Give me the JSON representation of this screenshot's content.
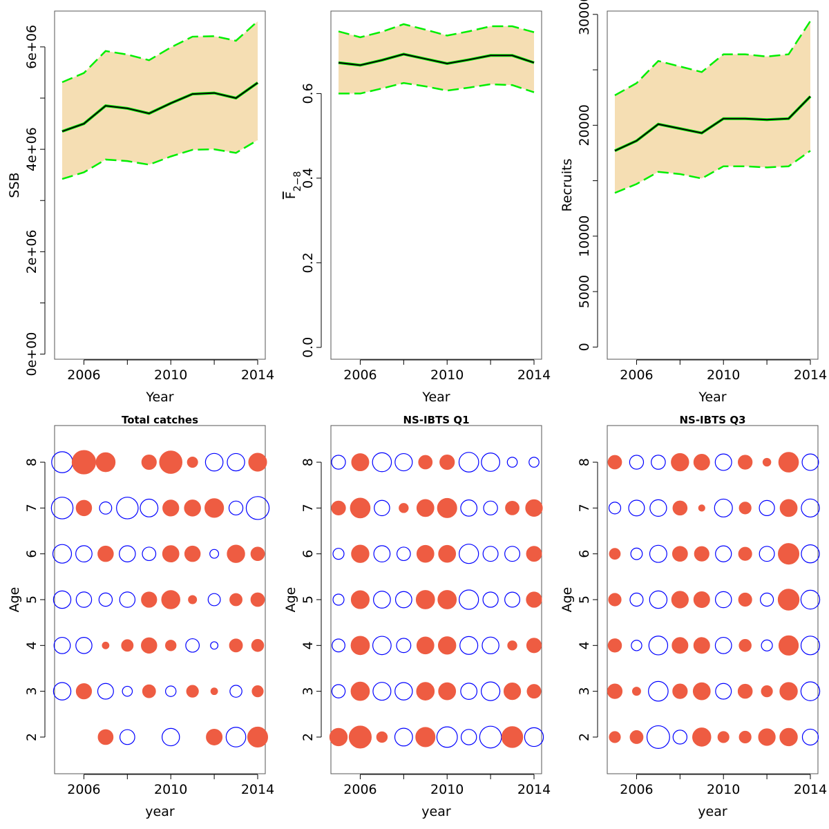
{
  "chart_data": [
    {
      "type": "line",
      "xlabel": "Year",
      "ylabel": "SSB",
      "x": [
        2005,
        2006,
        2007,
        2008,
        2009,
        2010,
        2011,
        2012,
        2013,
        2014
      ],
      "estimate": [
        4350000,
        4500000,
        4850000,
        4800000,
        4700000,
        4900000,
        5080000,
        5100000,
        5000000,
        5300000
      ],
      "lower": [
        3420000,
        3550000,
        3800000,
        3770000,
        3700000,
        3860000,
        3990000,
        4000000,
        3930000,
        4180000
      ],
      "upper": [
        5310000,
        5490000,
        5920000,
        5850000,
        5740000,
        5990000,
        6200000,
        6210000,
        6120000,
        6500000
      ],
      "xlim": [
        2004.65,
        2014.35
      ],
      "ylim": [
        -100000,
        6700000
      ],
      "xticks": [
        2006,
        2008,
        2010,
        2012,
        2014
      ],
      "xtick_labels": [
        "2006",
        "",
        "2010",
        "",
        "2014"
      ],
      "yticks": [
        0,
        1000000,
        2000000,
        3000000,
        4000000,
        5000000,
        6000000
      ],
      "ytick_labels": [
        "0e+00",
        "",
        "2e+06",
        "",
        "4e+06",
        "",
        "6e+06"
      ]
    },
    {
      "type": "line",
      "xlabel": "Year",
      "ylabel": "F",
      "ylabel_subscript": "2−8",
      "x": [
        2005,
        2006,
        2007,
        2008,
        2009,
        2010,
        2011,
        2012,
        2013,
        2014
      ],
      "estimate": [
        0.673,
        0.667,
        0.679,
        0.693,
        0.682,
        0.671,
        0.68,
        0.69,
        0.69,
        0.673
      ],
      "lower": [
        0.6,
        0.6,
        0.612,
        0.625,
        0.617,
        0.607,
        0.614,
        0.622,
        0.62,
        0.603
      ],
      "upper": [
        0.747,
        0.733,
        0.746,
        0.764,
        0.751,
        0.737,
        0.747,
        0.759,
        0.759,
        0.745
      ],
      "xlim": [
        2004.65,
        2014.35
      ],
      "ylim": [
        -0.028,
        0.795
      ],
      "xticks": [
        2006,
        2008,
        2010,
        2012,
        2014
      ],
      "xtick_labels": [
        "2006",
        "",
        "2010",
        "",
        "2014"
      ],
      "yticks": [
        0.0,
        0.2,
        0.4,
        0.6
      ],
      "ytick_labels": [
        "0.0",
        "0.2",
        "0.4",
        "0.6"
      ]
    },
    {
      "type": "line",
      "xlabel": "Year",
      "ylabel": "Recruits",
      "x": [
        2005,
        2006,
        2007,
        2008,
        2009,
        2010,
        2011,
        2012,
        2013,
        2014
      ],
      "estimate": [
        17700,
        18600,
        20100,
        19700,
        19300,
        20600,
        20600,
        20500,
        20600,
        22600
      ],
      "lower": [
        13900,
        14700,
        15800,
        15600,
        15200,
        16300,
        16300,
        16200,
        16300,
        17700
      ],
      "upper": [
        22700,
        23800,
        25800,
        25300,
        24800,
        26400,
        26400,
        26200,
        26400,
        29400
      ],
      "xlim": [
        2004.65,
        2014.35
      ],
      "ylim": [
        -1100,
        30300
      ],
      "xticks": [
        2006,
        2008,
        2010,
        2012,
        2014
      ],
      "xtick_labels": [
        "2006",
        "",
        "2010",
        "",
        "2014"
      ],
      "yticks": [
        0,
        5000,
        10000,
        15000,
        20000,
        25000,
        30000
      ],
      "ytick_labels": [
        "0",
        "5000",
        "10000",
        "",
        "20000",
        "",
        "30000"
      ]
    },
    {
      "type": "scatter",
      "title": "Total catches",
      "xlabel": "year",
      "ylabel": "Age",
      "xlim": [
        2004.65,
        2014.35
      ],
      "ylim": [
        1.2,
        8.8
      ],
      "xticks": [
        2006,
        2008,
        2010,
        2012,
        2014
      ],
      "xtick_labels": [
        "2006",
        "",
        "2010",
        "",
        "2014"
      ],
      "yticks": [
        2,
        3,
        4,
        5,
        6,
        7,
        8
      ],
      "ytick_labels": [
        "2",
        "3",
        "4",
        "5",
        "6",
        "7",
        "8"
      ],
      "years": [
        2005,
        2006,
        2007,
        2008,
        2009,
        2010,
        2011,
        2012,
        2013,
        2014
      ],
      "ages": [
        2,
        3,
        4,
        5,
        6,
        7,
        8
      ],
      "max_radius_px": 17,
      "residuals": {
        "2": [
          null,
          null,
          0.4,
          -0.4,
          null,
          -0.55,
          null,
          0.45,
          -0.7,
          0.72
        ],
        "3": [
          -0.55,
          0.42,
          -0.45,
          -0.18,
          0.3,
          -0.2,
          0.25,
          0.08,
          -0.26,
          0.22
        ],
        "4": [
          -0.48,
          -0.47,
          0.08,
          0.24,
          0.43,
          0.2,
          -0.33,
          -0.1,
          0.3,
          0.26
        ],
        "5": [
          -0.55,
          -0.43,
          -0.32,
          -0.43,
          0.42,
          0.6,
          0.12,
          -0.27,
          0.27,
          0.33
        ],
        "6": [
          -0.63,
          -0.48,
          0.43,
          -0.47,
          -0.33,
          0.48,
          0.43,
          -0.14,
          0.55,
          0.33
        ],
        "7": [
          -0.85,
          0.43,
          -0.27,
          -0.85,
          -0.57,
          0.46,
          0.47,
          0.63,
          -0.35,
          -0.95
        ],
        "8": [
          -0.8,
          1.0,
          0.65,
          null,
          0.38,
          0.91,
          0.19,
          -0.56,
          -0.55,
          0.58
        ]
      }
    },
    {
      "type": "scatter",
      "title": "NS-IBTS Q1",
      "xlabel": "year",
      "ylabel": "Age",
      "xlim": [
        2004.65,
        2014.35
      ],
      "ylim": [
        1.2,
        8.8
      ],
      "xticks": [
        2006,
        2008,
        2010,
        2012,
        2014
      ],
      "xtick_labels": [
        "2006",
        "",
        "2010",
        "",
        "2014"
      ],
      "yticks": [
        2,
        3,
        4,
        5,
        6,
        7,
        8
      ],
      "ytick_labels": [
        "2",
        "3",
        "4",
        "5",
        "6",
        "7",
        "8"
      ],
      "years": [
        2005,
        2006,
        2007,
        2008,
        2009,
        2010,
        2011,
        2012,
        2013,
        2014
      ],
      "ages": [
        2,
        3,
        4,
        5,
        6,
        7,
        8
      ],
      "max_radius_px": 17,
      "residuals": {
        "2": [
          0.55,
          0.88,
          0.2,
          -0.57,
          0.67,
          -0.76,
          -0.43,
          -0.86,
          0.79,
          -0.64
        ],
        "3": [
          -0.32,
          0.61,
          -0.58,
          -0.55,
          0.56,
          0.52,
          -0.48,
          -0.63,
          0.5,
          0.34
        ],
        "4": [
          -0.3,
          0.61,
          -0.61,
          -0.37,
          0.52,
          0.55,
          -0.58,
          -0.51,
          0.15,
          0.38
        ],
        "5": [
          -0.22,
          0.58,
          -0.52,
          -0.48,
          0.61,
          0.61,
          -0.68,
          -0.42,
          -0.41,
          0.42
        ],
        "6": [
          -0.22,
          0.55,
          -0.48,
          -0.33,
          0.52,
          0.52,
          -0.68,
          -0.41,
          -0.41,
          0.41
        ],
        "7": [
          0.35,
          0.7,
          -0.43,
          0.15,
          0.52,
          0.67,
          -0.48,
          -0.35,
          0.33,
          0.5
        ],
        "8": [
          -0.35,
          0.53,
          -0.65,
          -0.54,
          0.33,
          0.38,
          -0.7,
          -0.61,
          -0.18,
          -0.18
        ]
      }
    },
    {
      "type": "scatter",
      "title": "NS-IBTS Q3",
      "xlabel": "year",
      "ylabel": "Age",
      "xlim": [
        2004.65,
        2014.35
      ],
      "ylim": [
        1.2,
        8.8
      ],
      "xticks": [
        2006,
        2008,
        2010,
        2012,
        2014
      ],
      "xtick_labels": [
        "2006",
        "",
        "2010",
        "",
        "2014"
      ],
      "yticks": [
        2,
        3,
        4,
        5,
        6,
        7,
        8
      ],
      "ytick_labels": [
        "2",
        "3",
        "4",
        "5",
        "6",
        "7",
        "8"
      ],
      "years": [
        2005,
        2006,
        2007,
        2008,
        2009,
        2010,
        2011,
        2012,
        2013,
        2014
      ],
      "ages": [
        2,
        3,
        4,
        5,
        6,
        7,
        8
      ],
      "max_radius_px": 17,
      "residuals": {
        "2": [
          0.22,
          0.3,
          -0.93,
          -0.35,
          0.6,
          0.22,
          0.25,
          0.5,
          0.55,
          -0.46
        ],
        "3": [
          0.38,
          0.12,
          -0.7,
          0.38,
          0.52,
          -0.45,
          0.36,
          0.22,
          0.55,
          -0.64
        ],
        "4": [
          0.32,
          -0.2,
          -0.64,
          0.45,
          0.45,
          -0.48,
          0.26,
          -0.22,
          0.68,
          -0.63
        ],
        "5": [
          0.28,
          -0.31,
          -0.55,
          0.5,
          0.45,
          -0.47,
          0.31,
          -0.31,
          0.79,
          -0.64
        ],
        "6": [
          0.21,
          -0.24,
          -0.53,
          0.4,
          0.38,
          -0.46,
          0.31,
          -0.41,
          0.77,
          -0.59
        ],
        "7": [
          -0.25,
          -0.45,
          -0.5,
          0.36,
          0.07,
          -0.58,
          0.25,
          -0.42,
          0.52,
          -0.59
        ],
        "8": [
          0.33,
          -0.35,
          -0.36,
          0.55,
          0.45,
          -0.49,
          0.35,
          0.11,
          0.7,
          -0.49
        ]
      }
    }
  ],
  "colors": {
    "band": "#F5DEB3",
    "ci_line": "#00EE00",
    "estimate_line": "#000000",
    "positive_residual": "#EE5C42",
    "negative_residual": "#0000FF"
  }
}
